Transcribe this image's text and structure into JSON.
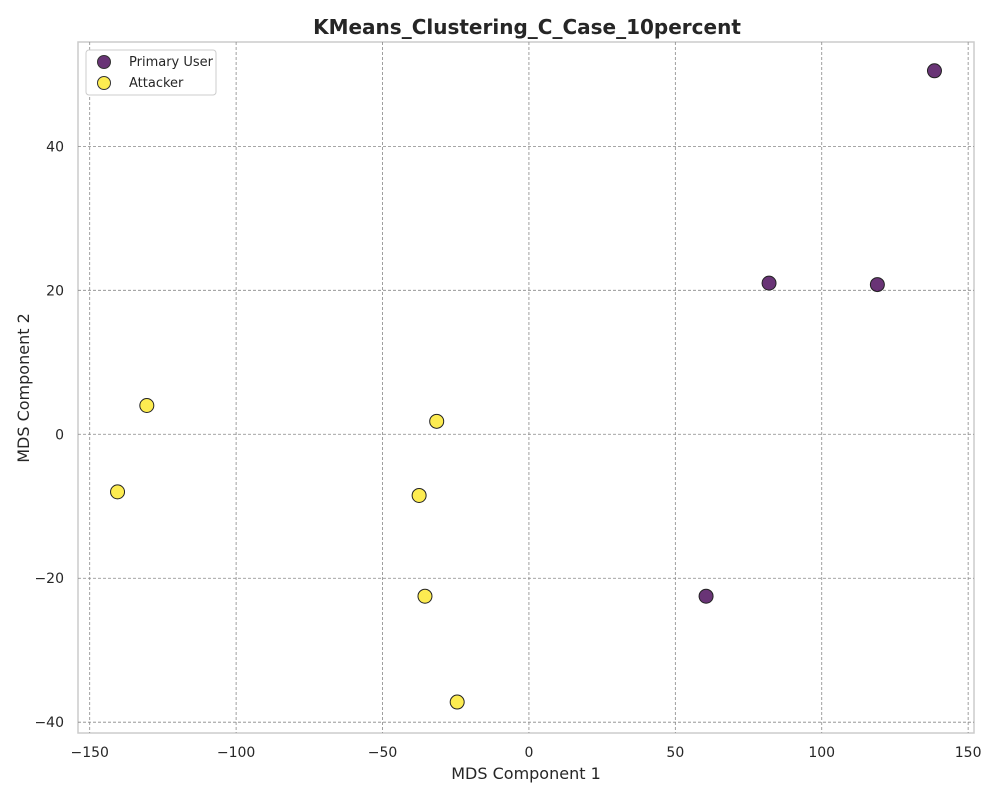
{
  "chart_data": {
    "type": "scatter",
    "title": "KMeans_Clustering_C_Case_10percent",
    "xlabel": "MDS Component 1",
    "ylabel": "MDS Component 2",
    "xlim": [
      -154,
      152
    ],
    "ylim": [
      -41.5,
      54.5
    ],
    "xticks": [
      -150,
      -100,
      -50,
      0,
      50,
      100,
      150
    ],
    "yticks": [
      -40,
      -20,
      0,
      20,
      40
    ],
    "xtick_labels": [
      "−150",
      "−100",
      "−50",
      "0",
      "50",
      "100",
      "150"
    ],
    "ytick_labels": [
      "−40",
      "−20",
      "0",
      "20",
      "40"
    ],
    "grid": true,
    "legend_position": "top-left",
    "series": [
      {
        "name": "Primary User",
        "color": "#440154",
        "points": [
          {
            "x": 138.5,
            "y": 50.5
          },
          {
            "x": 82,
            "y": 21
          },
          {
            "x": 119,
            "y": 20.8
          },
          {
            "x": 60.5,
            "y": -22.5
          }
        ]
      },
      {
        "name": "Attacker",
        "color": "#FDE725",
        "points": [
          {
            "x": -130.5,
            "y": 4
          },
          {
            "x": -140.5,
            "y": -8
          },
          {
            "x": -31.5,
            "y": 1.8
          },
          {
            "x": -37.5,
            "y": -8.5
          },
          {
            "x": -35.5,
            "y": -22.5
          },
          {
            "x": -24.5,
            "y": -37.2
          }
        ]
      }
    ]
  }
}
